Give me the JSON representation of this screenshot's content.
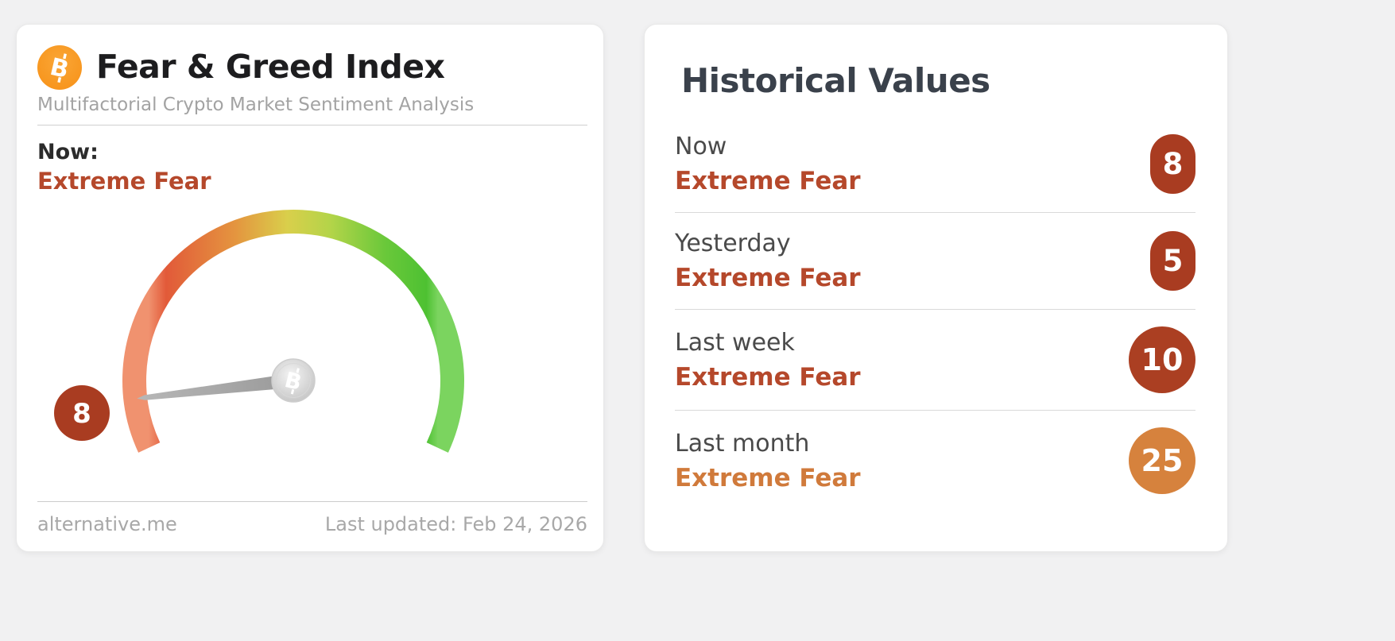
{
  "left_card": {
    "title": "Fear & Greed Index",
    "subtitle": "Multifactorial Crypto Market Sentiment Analysis",
    "now_label": "Now:",
    "now_classification": "Extreme Fear",
    "now_color": "#b5482b",
    "gauge": {
      "value": 8,
      "min": 0,
      "max": 100,
      "badge_color": "#a93c21"
    },
    "footer": {
      "source": "alternative.me",
      "last_updated": "Last updated: Feb 24, 2026"
    }
  },
  "right_card": {
    "title": "Historical Values",
    "rows": [
      {
        "label": "Now",
        "classification": "Extreme Fear",
        "value": 8,
        "text_color": "#b5482b",
        "badge_color": "#a93c21"
      },
      {
        "label": "Yesterday",
        "classification": "Extreme Fear",
        "value": 5,
        "text_color": "#b5482b",
        "badge_color": "#a93c21"
      },
      {
        "label": "Last week",
        "classification": "Extreme Fear",
        "value": 10,
        "text_color": "#b5482b",
        "badge_color": "#ab3f22"
      },
      {
        "label": "Last month",
        "classification": "Extreme Fear",
        "value": 25,
        "text_color": "#d07a3b",
        "badge_color": "#d6823d"
      }
    ]
  },
  "chart_data": {
    "type": "gauge",
    "title": "Fear & Greed Index",
    "value": 8,
    "classification": "Extreme Fear",
    "range": [
      0,
      100
    ],
    "gauge_gradient": [
      "#e25a39",
      "#e4953f",
      "#d9cf4b",
      "#a6d046",
      "#4ec132"
    ],
    "historical": [
      {
        "label": "Now",
        "value": 8,
        "classification": "Extreme Fear"
      },
      {
        "label": "Yesterday",
        "value": 5,
        "classification": "Extreme Fear"
      },
      {
        "label": "Last week",
        "value": 10,
        "classification": "Extreme Fear"
      },
      {
        "label": "Last month",
        "value": 25,
        "classification": "Extreme Fear"
      }
    ]
  }
}
